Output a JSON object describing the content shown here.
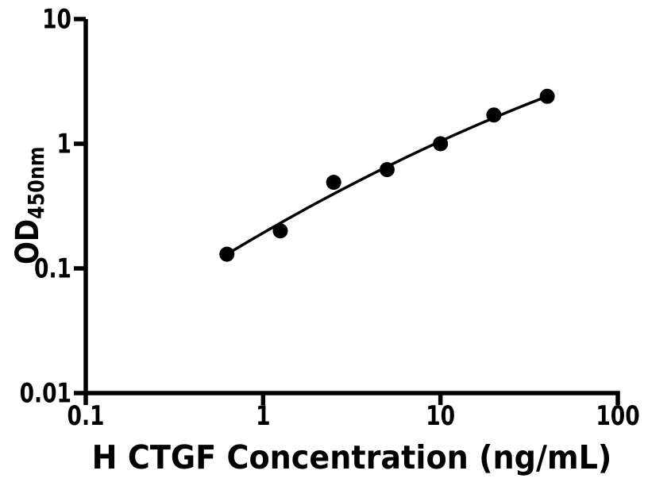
{
  "chart_data": {
    "type": "scatter",
    "title": "",
    "xlabel": "H CTGF Concentration (ng/mL)",
    "ylabel": {
      "main": "OD",
      "sub": "450nm"
    },
    "x_scale": "log",
    "y_scale": "log",
    "xlim": [
      0.1,
      100
    ],
    "ylim": [
      0.01,
      10
    ],
    "x_ticks": [
      {
        "v": 0.1,
        "label": "0.1"
      },
      {
        "v": 1,
        "label": "1"
      },
      {
        "v": 10,
        "label": "10"
      },
      {
        "v": 100,
        "label": "100"
      }
    ],
    "y_ticks": [
      {
        "v": 0.01,
        "label": "0.01"
      },
      {
        "v": 0.1,
        "label": "0.1"
      },
      {
        "v": 1,
        "label": "1"
      },
      {
        "v": 10,
        "label": "10"
      }
    ],
    "points": [
      {
        "x": 0.625,
        "y": 0.13
      },
      {
        "x": 1.25,
        "y": 0.2
      },
      {
        "x": 2.5,
        "y": 0.49
      },
      {
        "x": 5,
        "y": 0.62
      },
      {
        "x": 10,
        "y": 1.0
      },
      {
        "x": 20,
        "y": 1.7
      },
      {
        "x": 40,
        "y": 2.4
      }
    ],
    "fit_curve": {
      "type": "quadratic_bezier_log",
      "start": [
        0.625,
        0.13
      ],
      "control": [
        5.0,
        0.77
      ],
      "end": [
        40,
        2.4
      ]
    },
    "grid": false,
    "legend": null,
    "colors": {
      "points": "#000000",
      "line": "#000000",
      "axis": "#000000",
      "text": "#000000",
      "background": "#ffffff"
    }
  }
}
